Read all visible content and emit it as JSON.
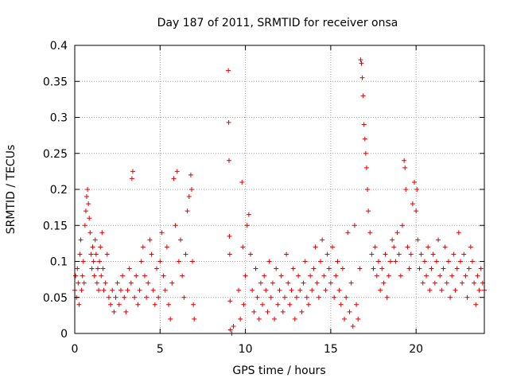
{
  "chart_data": {
    "type": "scatter",
    "title": "Day 187 of 2011, SRMTID for receiver onsa",
    "xlabel": "GPS time / hours",
    "ylabel": "SRMTID / TECUs",
    "xlim": [
      0,
      24
    ],
    "ylim": [
      0,
      0.4
    ],
    "xticks": [
      0,
      5,
      10,
      15,
      20
    ],
    "xtick_labels": [
      "0",
      "5",
      "10",
      "15",
      "20"
    ],
    "yticks": [
      0,
      0.05,
      0.1,
      0.15,
      0.2,
      0.25,
      0.3,
      0.35,
      0.4
    ],
    "ytick_labels": [
      "0",
      "0.05",
      "0.1",
      "0.15",
      "0.2",
      "0.25",
      "0.3",
      "0.35",
      "0.4"
    ],
    "grid": true,
    "marker": "+",
    "series": [
      {
        "name": "SRMTID",
        "color": "#e00000",
        "points": [
          [
            0.0,
            0.06
          ],
          [
            0.05,
            0.08
          ],
          [
            0.1,
            0.05
          ],
          [
            0.15,
            0.09
          ],
          [
            0.2,
            0.07
          ],
          [
            0.25,
            0.04
          ],
          [
            0.3,
            0.11
          ],
          [
            0.35,
            0.13
          ],
          [
            0.4,
            0.06
          ],
          [
            0.45,
            0.08
          ],
          [
            0.5,
            0.1
          ],
          [
            0.55,
            0.07
          ],
          [
            0.6,
            0.15
          ],
          [
            0.65,
            0.17
          ],
          [
            0.7,
            0.19
          ],
          [
            0.75,
            0.2
          ],
          [
            0.8,
            0.18
          ],
          [
            0.85,
            0.16
          ],
          [
            0.9,
            0.14
          ],
          [
            0.95,
            0.11
          ],
          [
            1.0,
            0.09
          ],
          [
            1.05,
            0.12
          ],
          [
            1.1,
            0.1
          ],
          [
            1.15,
            0.08
          ],
          [
            1.2,
            0.13
          ],
          [
            1.25,
            0.11
          ],
          [
            1.3,
            0.07
          ],
          [
            1.35,
            0.09
          ],
          [
            1.4,
            0.06
          ],
          [
            1.45,
            0.1
          ],
          [
            1.5,
            0.12
          ],
          [
            1.55,
            0.08
          ],
          [
            1.6,
            0.14
          ],
          [
            1.65,
            0.09
          ],
          [
            1.7,
            0.06
          ],
          [
            1.8,
            0.07
          ],
          [
            1.9,
            0.11
          ],
          [
            2.0,
            0.05
          ],
          [
            2.1,
            0.04
          ],
          [
            2.2,
            0.06
          ],
          [
            2.3,
            0.03
          ],
          [
            2.4,
            0.05
          ],
          [
            2.5,
            0.07
          ],
          [
            2.6,
            0.04
          ],
          [
            2.7,
            0.06
          ],
          [
            2.8,
            0.08
          ],
          [
            2.9,
            0.05
          ],
          [
            3.0,
            0.03
          ],
          [
            3.1,
            0.06
          ],
          [
            3.2,
            0.09
          ],
          [
            3.3,
            0.07
          ],
          [
            3.35,
            0.215
          ],
          [
            3.4,
            0.225
          ],
          [
            3.5,
            0.05
          ],
          [
            3.6,
            0.08
          ],
          [
            3.7,
            0.04
          ],
          [
            3.8,
            0.06
          ],
          [
            3.9,
            0.1
          ],
          [
            4.0,
            0.12
          ],
          [
            4.1,
            0.08
          ],
          [
            4.2,
            0.05
          ],
          [
            4.3,
            0.07
          ],
          [
            4.4,
            0.13
          ],
          [
            4.5,
            0.11
          ],
          [
            4.6,
            0.06
          ],
          [
            4.7,
            0.04
          ],
          [
            4.8,
            0.09
          ],
          [
            4.9,
            0.05
          ],
          [
            5.0,
            0.1
          ],
          [
            5.1,
            0.14
          ],
          [
            5.2,
            0.08
          ],
          [
            5.3,
            0.06
          ],
          [
            5.4,
            0.12
          ],
          [
            5.5,
            0.04
          ],
          [
            5.6,
            0.02
          ],
          [
            5.7,
            0.07
          ],
          [
            5.8,
            0.215
          ],
          [
            5.9,
            0.15
          ],
          [
            6.0,
            0.225
          ],
          [
            6.1,
            0.1
          ],
          [
            6.2,
            0.13
          ],
          [
            6.3,
            0.08
          ],
          [
            6.4,
            0.05
          ],
          [
            6.5,
            0.11
          ],
          [
            6.6,
            0.17
          ],
          [
            6.7,
            0.19
          ],
          [
            6.8,
            0.22
          ],
          [
            6.85,
            0.2
          ],
          [
            6.9,
            0.1
          ],
          [
            6.95,
            0.04
          ],
          [
            7.0,
            0.02
          ],
          [
            9.0,
            0.365
          ],
          [
            9.02,
            0.293
          ],
          [
            9.04,
            0.24
          ],
          [
            9.06,
            0.135
          ],
          [
            9.08,
            0.11
          ],
          [
            9.1,
            0.045
          ],
          [
            9.12,
            0.005
          ],
          [
            9.2,
            0.0
          ],
          [
            9.3,
            0.01
          ],
          [
            9.6,
            0.06
          ],
          [
            9.7,
            0.02
          ],
          [
            9.8,
            0.21
          ],
          [
            9.85,
            0.12
          ],
          [
            9.9,
            0.04
          ],
          [
            10.0,
            0.08
          ],
          [
            10.1,
            0.15
          ],
          [
            10.2,
            0.165
          ],
          [
            10.3,
            0.11
          ],
          [
            10.4,
            0.06
          ],
          [
            10.5,
            0.03
          ],
          [
            10.6,
            0.09
          ],
          [
            10.7,
            0.05
          ],
          [
            10.8,
            0.02
          ],
          [
            10.9,
            0.07
          ],
          [
            11.0,
            0.04
          ],
          [
            11.1,
            0.08
          ],
          [
            11.2,
            0.06
          ],
          [
            11.3,
            0.03
          ],
          [
            11.4,
            0.1
          ],
          [
            11.5,
            0.05
          ],
          [
            11.6,
            0.07
          ],
          [
            11.7,
            0.02
          ],
          [
            11.8,
            0.09
          ],
          [
            11.9,
            0.04
          ],
          [
            12.0,
            0.06
          ],
          [
            12.1,
            0.08
          ],
          [
            12.2,
            0.03
          ],
          [
            12.3,
            0.05
          ],
          [
            12.4,
            0.11
          ],
          [
            12.5,
            0.07
          ],
          [
            12.6,
            0.04
          ],
          [
            12.7,
            0.06
          ],
          [
            12.8,
            0.09
          ],
          [
            12.9,
            0.02
          ],
          [
            13.0,
            0.05
          ],
          [
            13.1,
            0.08
          ],
          [
            13.2,
            0.06
          ],
          [
            13.3,
            0.03
          ],
          [
            13.4,
            0.07
          ],
          [
            13.5,
            0.1
          ],
          [
            13.6,
            0.05
          ],
          [
            13.7,
            0.04
          ],
          [
            13.8,
            0.08
          ],
          [
            13.9,
            0.06
          ],
          [
            14.0,
            0.09
          ],
          [
            14.1,
            0.12
          ],
          [
            14.2,
            0.07
          ],
          [
            14.3,
            0.05
          ],
          [
            14.4,
            0.1
          ],
          [
            14.5,
            0.13
          ],
          [
            14.6,
            0.08
          ],
          [
            14.7,
            0.06
          ],
          [
            14.8,
            0.11
          ],
          [
            14.9,
            0.09
          ],
          [
            15.0,
            0.07
          ],
          [
            15.1,
            0.12
          ],
          [
            15.2,
            0.05
          ],
          [
            15.3,
            0.08
          ],
          [
            15.4,
            0.1
          ],
          [
            15.5,
            0.06
          ],
          [
            15.6,
            0.04
          ],
          [
            15.7,
            0.09
          ],
          [
            15.8,
            0.02
          ],
          [
            15.9,
            0.05
          ],
          [
            16.0,
            0.14
          ],
          [
            16.1,
            0.03
          ],
          [
            16.2,
            0.07
          ],
          [
            16.3,
            0.01
          ],
          [
            16.4,
            0.15
          ],
          [
            16.5,
            0.04
          ],
          [
            16.6,
            0.02
          ],
          [
            16.7,
            0.09
          ],
          [
            16.75,
            0.38
          ],
          [
            16.8,
            0.375
          ],
          [
            16.85,
            0.355
          ],
          [
            16.9,
            0.33
          ],
          [
            16.95,
            0.29
          ],
          [
            17.0,
            0.27
          ],
          [
            17.05,
            0.25
          ],
          [
            17.1,
            0.23
          ],
          [
            17.15,
            0.2
          ],
          [
            17.2,
            0.17
          ],
          [
            17.3,
            0.14
          ],
          [
            17.4,
            0.11
          ],
          [
            17.5,
            0.09
          ],
          [
            17.6,
            0.12
          ],
          [
            17.7,
            0.08
          ],
          [
            17.8,
            0.1
          ],
          [
            17.9,
            0.06
          ],
          [
            18.0,
            0.09
          ],
          [
            18.1,
            0.07
          ],
          [
            18.2,
            0.11
          ],
          [
            18.3,
            0.05
          ],
          [
            18.4,
            0.08
          ],
          [
            18.5,
            0.1
          ],
          [
            18.6,
            0.13
          ],
          [
            18.7,
            0.12
          ],
          [
            18.8,
            0.1
          ],
          [
            18.9,
            0.14
          ],
          [
            19.0,
            0.11
          ],
          [
            19.1,
            0.08
          ],
          [
            19.2,
            0.15
          ],
          [
            19.3,
            0.24
          ],
          [
            19.35,
            0.23
          ],
          [
            19.4,
            0.2
          ],
          [
            19.5,
            0.12
          ],
          [
            19.6,
            0.09
          ],
          [
            19.7,
            0.11
          ],
          [
            19.8,
            0.18
          ],
          [
            19.9,
            0.21
          ],
          [
            20.0,
            0.17
          ],
          [
            20.05,
            0.2
          ],
          [
            20.1,
            0.13
          ],
          [
            20.2,
            0.09
          ],
          [
            20.3,
            0.11
          ],
          [
            20.4,
            0.07
          ],
          [
            20.5,
            0.1
          ],
          [
            20.6,
            0.08
          ],
          [
            20.7,
            0.12
          ],
          [
            20.8,
            0.06
          ],
          [
            20.9,
            0.09
          ],
          [
            21.0,
            0.11
          ],
          [
            21.1,
            0.07
          ],
          [
            21.2,
            0.1
          ],
          [
            21.3,
            0.13
          ],
          [
            21.4,
            0.08
          ],
          [
            21.5,
            0.06
          ],
          [
            21.6,
            0.09
          ],
          [
            21.7,
            0.12
          ],
          [
            21.8,
            0.07
          ],
          [
            21.9,
            0.1
          ],
          [
            22.0,
            0.05
          ],
          [
            22.1,
            0.08
          ],
          [
            22.2,
            0.11
          ],
          [
            22.3,
            0.06
          ],
          [
            22.4,
            0.09
          ],
          [
            22.5,
            0.14
          ],
          [
            22.6,
            0.1
          ],
          [
            22.7,
            0.07
          ],
          [
            22.8,
            0.11
          ],
          [
            22.9,
            0.08
          ],
          [
            23.0,
            0.05
          ],
          [
            23.1,
            0.09
          ],
          [
            23.2,
            0.12
          ],
          [
            23.3,
            0.1
          ],
          [
            23.4,
            0.07
          ],
          [
            23.5,
            0.04
          ],
          [
            23.6,
            0.08
          ],
          [
            23.7,
            0.06
          ],
          [
            23.8,
            0.09
          ],
          [
            23.9,
            0.07
          ],
          [
            24.0,
            0.06
          ]
        ]
      }
    ]
  }
}
